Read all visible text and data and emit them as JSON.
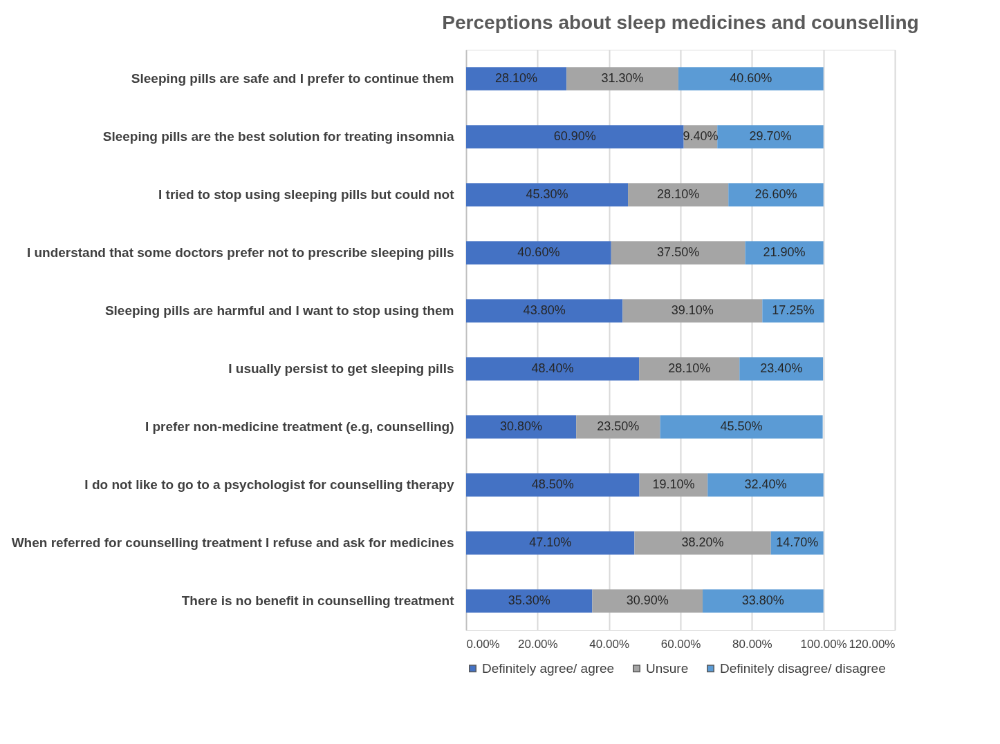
{
  "chart_data": {
    "type": "bar",
    "orientation": "horizontal",
    "stacked": true,
    "title": "Perceptions about sleep medicines and counselling",
    "categories": [
      "Sleeping pills are safe and I prefer to continue them",
      "Sleeping pills are the best solution for treating insomnia",
      "I tried to stop using sleeping pills but could not",
      "I understand that some doctors prefer not to prescribe sleeping pills",
      "Sleeping pills are harmful and I want to stop using them",
      "I usually persist to get sleeping pills",
      "I prefer non-medicine treatment (e.g, counselling)",
      "I do not like to go to a psychologist for counselling therapy",
      "When referred for counselling treatment I refuse and ask for medicines",
      "There is no benefit in counselling treatment"
    ],
    "series": [
      {
        "name": "Definitely agree/ agree",
        "color": "#4472c4",
        "values": [
          28.1,
          60.9,
          45.3,
          40.6,
          43.8,
          48.4,
          30.8,
          48.5,
          47.1,
          35.3
        ],
        "value_labels": [
          "28.10%",
          "60.90%",
          "45.30%",
          "40.60%",
          "43.80%",
          "48.40%",
          "30.80%",
          "48.50%",
          "47.10%",
          "35.30%"
        ]
      },
      {
        "name": "Unsure",
        "color": "#a5a5a5",
        "values": [
          31.3,
          9.4,
          28.1,
          37.5,
          39.1,
          28.1,
          23.5,
          19.1,
          38.2,
          30.9
        ],
        "value_labels": [
          "31.30%",
          "9.40%",
          "28.10%",
          "37.50%",
          "39.10%",
          "28.10%",
          "23.50%",
          "19.10%",
          "38.20%",
          "30.90%"
        ]
      },
      {
        "name": "Definitely disagree/ disagree",
        "color": "#5b9bd5",
        "values": [
          40.6,
          29.7,
          26.6,
          21.9,
          17.25,
          23.4,
          45.5,
          32.4,
          14.7,
          33.8
        ],
        "value_labels": [
          "40.60%",
          "29.70%",
          "26.60%",
          "21.90%",
          "17.25%",
          "23.40%",
          "45.50%",
          "32.40%",
          "14.70%",
          "33.80%"
        ]
      }
    ],
    "xlim": [
      0,
      120
    ],
    "xticks": [
      {
        "value": 0,
        "label": "0.00%"
      },
      {
        "value": 20,
        "label": "20.00%"
      },
      {
        "value": 40,
        "label": "40.00%"
      },
      {
        "value": 60,
        "label": "60.00%"
      },
      {
        "value": 80,
        "label": "80.00%"
      },
      {
        "value": 100,
        "label": "100.00%"
      },
      {
        "value": 120,
        "label": "120.00%"
      }
    ],
    "grid": "x",
    "legend": "bottom"
  }
}
